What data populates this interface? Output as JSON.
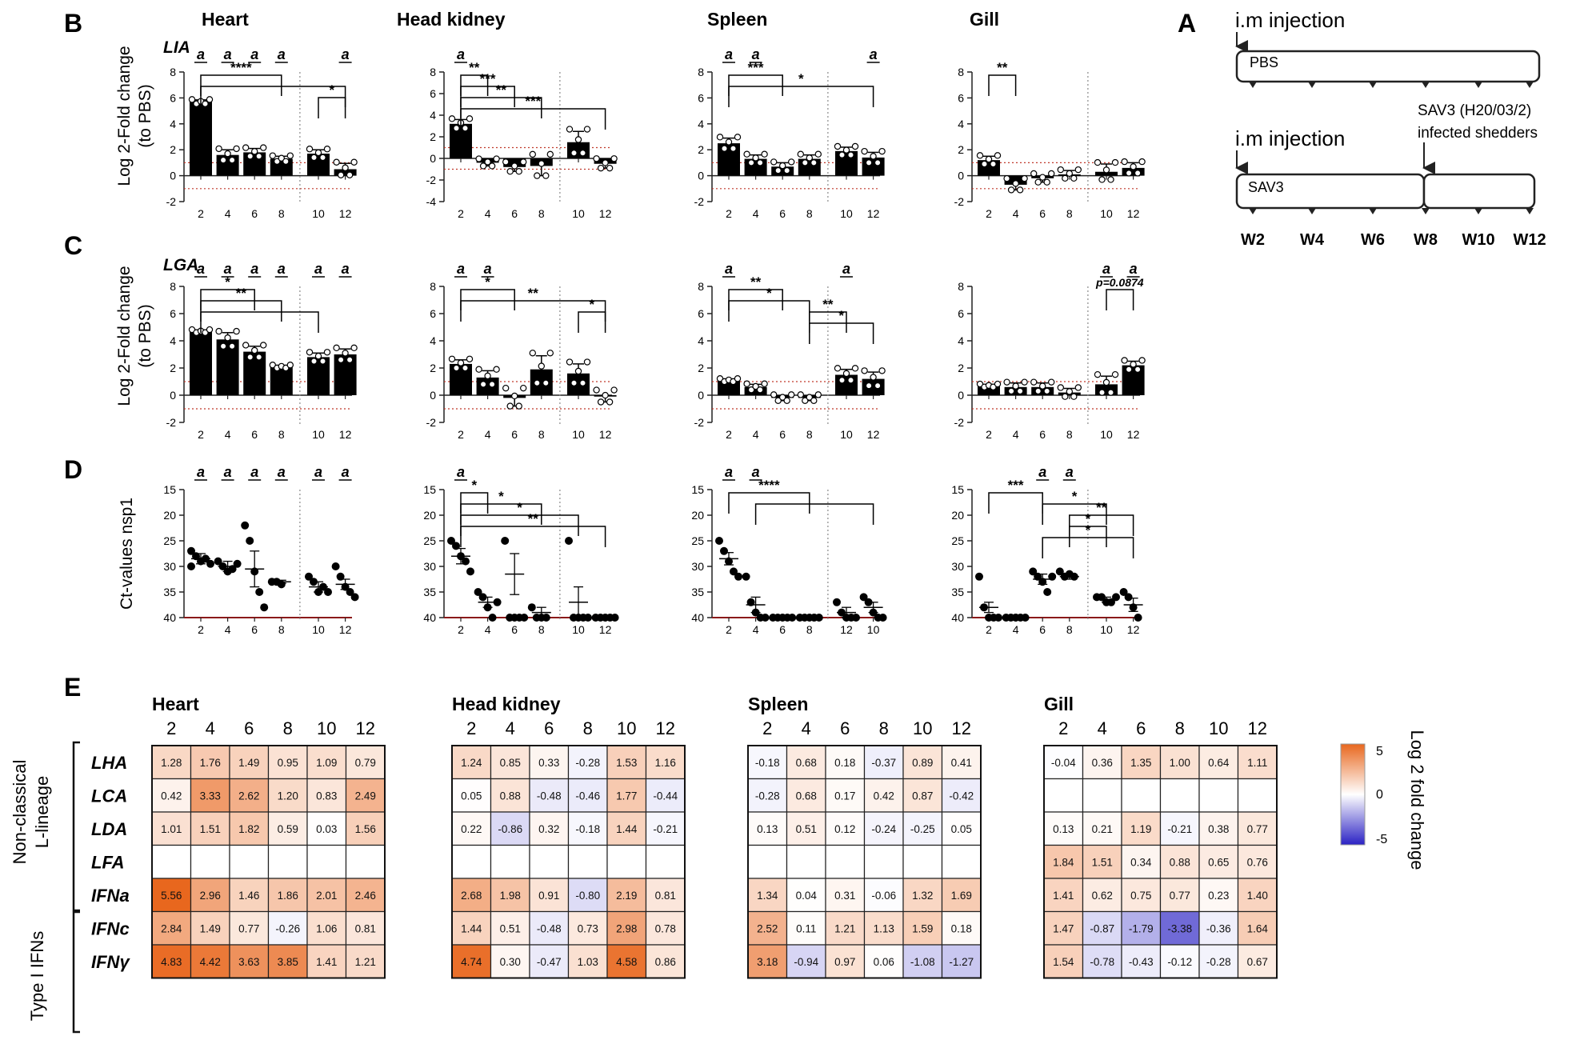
{
  "figure": {
    "panel_letters": {
      "A": "A",
      "B": "B",
      "C": "C",
      "D": "D",
      "E": "E"
    },
    "tissues": [
      "Heart",
      "Head kidney",
      "Spleen",
      "Gill"
    ],
    "gene_labels": {
      "B": "LIA",
      "C": "LGA"
    },
    "ylabel_fold": [
      "Log 2-Fold change",
      "(to PBS)"
    ],
    "ylabel_ct": "Ct-values nsp1",
    "heatmap_group_labels": {
      "noncl": [
        "Non-classical",
        "L-lineage"
      ],
      "typeI": "Type I IFNs"
    },
    "colorbar": {
      "label": "Log 2 fold change",
      "ticks": [
        "5",
        "0",
        "-5"
      ],
      "colors": {
        "high": "#e8671e",
        "mid": "#ffffff",
        "low": "#2b22c4"
      }
    }
  },
  "schematic": {
    "injection_label": "i.m injection",
    "group1_label": "PBS",
    "group2_label": "SAV3",
    "shedders_label": [
      "SAV3 (H20/03/2)",
      "infected shedders"
    ],
    "weeks": [
      "W2",
      "W4",
      "W6",
      "W8",
      "W10",
      "W12"
    ]
  },
  "chart_data": [
    {
      "id": "B-Heart",
      "type": "bar",
      "panel": "B",
      "tissue": "Heart",
      "weeks": [
        "2",
        "4",
        "6",
        "8",
        "10",
        "12"
      ],
      "values": [
        5.7,
        1.6,
        1.8,
        1.3,
        1.7,
        0.5
      ],
      "errors": [
        0.15,
        0.4,
        0.3,
        0.2,
        0.3,
        0.45
      ],
      "ylim": [
        -2,
        8
      ],
      "yticks": [
        "8",
        "6",
        "4",
        "2",
        "0",
        "-2"
      ],
      "annotations": [
        "a",
        "a",
        "a",
        "a",
        "",
        "a"
      ],
      "brackets": [
        {
          "from": "2",
          "to": "8",
          "label": "****"
        },
        {
          "from": "2",
          "to": "12",
          "label": ""
        },
        {
          "from": "10",
          "to": "12",
          "label": "*"
        }
      ]
    },
    {
      "id": "B-HeadKidney",
      "type": "bar",
      "panel": "B",
      "tissue": "Head kidney",
      "weeks": [
        "2",
        "4",
        "6",
        "8",
        "10",
        "12"
      ],
      "values": [
        3.2,
        -0.4,
        -0.8,
        -0.7,
        1.5,
        -0.5
      ],
      "errors": [
        0.4,
        0.3,
        0.4,
        0.9,
        1.0,
        0.4
      ],
      "ylim": [
        -4,
        8
      ],
      "yticks": [
        "8",
        "6",
        "4",
        "2",
        "0",
        "-2",
        "-4"
      ],
      "annotations": [
        "a",
        "",
        "",
        "",
        "",
        ""
      ],
      "brackets": [
        {
          "from": "2",
          "to": "4",
          "label": "**"
        },
        {
          "from": "2",
          "to": "6",
          "label": "***"
        },
        {
          "from": "2",
          "to": "8",
          "label": "**"
        },
        {
          "from": "2",
          "to": "12",
          "label": "***"
        }
      ]
    },
    {
      "id": "B-Spleen",
      "type": "bar",
      "panel": "B",
      "tissue": "Spleen",
      "weeks": [
        "2",
        "4",
        "6",
        "8",
        "10",
        "12"
      ],
      "values": [
        2.5,
        1.3,
        0.7,
        1.3,
        1.9,
        1.4
      ],
      "errors": [
        0.4,
        0.3,
        0.3,
        0.3,
        0.3,
        0.4
      ],
      "ylim": [
        -2,
        8
      ],
      "yticks": [
        "8",
        "6",
        "4",
        "2",
        "0",
        "-2"
      ],
      "annotations": [
        "a",
        "a",
        "",
        "",
        "",
        "a"
      ],
      "brackets": [
        {
          "from": "2",
          "to": "6",
          "label": "***"
        },
        {
          "from": "2",
          "to": "12",
          "label": "*"
        }
      ]
    },
    {
      "id": "B-Gill",
      "type": "bar",
      "panel": "B",
      "tissue": "Gill",
      "weeks": [
        "2",
        "4",
        "6",
        "8",
        "10",
        "12"
      ],
      "values": [
        1.2,
        -0.7,
        -0.2,
        0.1,
        0.3,
        0.6
      ],
      "errors": [
        0.3,
        0.4,
        0.3,
        0.3,
        0.6,
        0.4
      ],
      "ylim": [
        -2,
        8
      ],
      "yticks": [
        "8",
        "6",
        "4",
        "2",
        "0",
        "-2"
      ],
      "annotations": [
        "",
        "",
        "",
        "",
        "",
        ""
      ],
      "brackets": [
        {
          "from": "2",
          "to": "4",
          "label": "**"
        }
      ]
    },
    {
      "id": "C-Heart",
      "type": "bar",
      "panel": "C",
      "tissue": "Heart",
      "weeks": [
        "2",
        "4",
        "6",
        "8",
        "10",
        "12"
      ],
      "values": [
        4.7,
        4.1,
        3.2,
        2.1,
        2.8,
        3.0
      ],
      "errors": [
        0.1,
        0.5,
        0.4,
        0.1,
        0.3,
        0.4
      ],
      "ylim": [
        -2,
        8
      ],
      "yticks": [
        "8",
        "6",
        "4",
        "2",
        "0",
        "-2"
      ],
      "annotations": [
        "a",
        "a",
        "a",
        "a",
        "a",
        "a"
      ],
      "brackets": [
        {
          "from": "2",
          "to": "6",
          "label": "*"
        },
        {
          "from": "2",
          "to": "8",
          "label": "**"
        },
        {
          "from": "2",
          "to": "10",
          "label": ""
        }
      ]
    },
    {
      "id": "C-HeadKidney",
      "type": "bar",
      "panel": "C",
      "tissue": "Head kidney",
      "weeks": [
        "2",
        "4",
        "6",
        "8",
        "10",
        "12"
      ],
      "values": [
        2.3,
        1.3,
        -0.2,
        1.9,
        1.6,
        -0.1
      ],
      "errors": [
        0.3,
        0.5,
        0.6,
        1.0,
        0.7,
        0.4
      ],
      "ylim": [
        -2,
        8
      ],
      "yticks": [
        "8",
        "6",
        "4",
        "2",
        "0",
        "-2"
      ],
      "annotations": [
        "a",
        "a",
        "",
        "",
        "",
        ""
      ],
      "brackets": [
        {
          "from": "2",
          "to": "6",
          "label": "*"
        },
        {
          "from": "2",
          "to": "12",
          "label": "**"
        },
        {
          "from": "10",
          "to": "12",
          "label": "*"
        }
      ]
    },
    {
      "id": "C-Spleen",
      "type": "bar",
      "panel": "C",
      "tissue": "Spleen",
      "weeks": [
        "2",
        "4",
        "6",
        "8",
        "10",
        "12"
      ],
      "values": [
        1.1,
        0.6,
        -0.2,
        -0.2,
        1.5,
        1.2
      ],
      "errors": [
        0.1,
        0.2,
        0.2,
        0.2,
        0.4,
        0.5
      ],
      "ylim": [
        -2,
        8
      ],
      "yticks": [
        "8",
        "6",
        "4",
        "2",
        "0",
        "-2"
      ],
      "annotations": [
        "a",
        "",
        "",
        "",
        "a",
        ""
      ],
      "brackets": [
        {
          "from": "2",
          "to": "6",
          "label": "**"
        },
        {
          "from": "2",
          "to": "8",
          "label": "*"
        },
        {
          "from": "8",
          "to": "10",
          "label": "**"
        },
        {
          "from": "8",
          "to": "12",
          "label": "*"
        }
      ]
    },
    {
      "id": "C-Gill",
      "type": "bar",
      "panel": "C",
      "tissue": "Gill",
      "weeks": [
        "2",
        "4",
        "6",
        "8",
        "10",
        "12"
      ],
      "values": [
        0.7,
        0.6,
        0.6,
        0.2,
        0.8,
        2.2
      ],
      "errors": [
        0.1,
        0.3,
        0.3,
        0.3,
        0.6,
        0.3
      ],
      "ylim": [
        -2,
        8
      ],
      "yticks": [
        "8",
        "6",
        "4",
        "2",
        "0",
        "-2"
      ],
      "annotations": [
        "",
        "",
        "",
        "",
        "a",
        "a"
      ],
      "brackets": [
        {
          "from": "10",
          "to": "12",
          "label": "p=0.0874"
        }
      ]
    },
    {
      "id": "D-Heart",
      "type": "scatter",
      "panel": "D",
      "tissue": "Heart",
      "weeks": [
        "2",
        "4",
        "6",
        "8",
        "10",
        "12"
      ],
      "means": [
        28.5,
        30,
        30.5,
        33,
        34,
        33.5
      ],
      "errors": [
        1,
        1,
        3.5,
        0.3,
        1,
        1
      ],
      "points": [
        [
          27,
          28,
          29,
          28.5,
          29.5,
          30
        ],
        [
          29,
          30,
          31,
          30.5,
          29.5
        ],
        [
          22,
          25,
          31,
          35,
          38
        ],
        [
          33,
          33,
          33.5
        ],
        [
          32,
          33,
          35,
          34,
          35
        ],
        [
          30,
          32,
          34,
          35,
          36
        ]
      ],
      "ylim": [
        15,
        40
      ],
      "yticks": [
        "15",
        "20",
        "25",
        "30",
        "35",
        "40"
      ],
      "annotations": [
        "a",
        "a",
        "a",
        "a",
        "a",
        "a"
      ],
      "brackets": []
    },
    {
      "id": "D-HeadKidney",
      "type": "scatter",
      "panel": "D",
      "tissue": "Head kidney",
      "weeks": [
        "2",
        "4",
        "6",
        "8",
        "10",
        "12"
      ],
      "means": [
        28,
        37,
        31.5,
        39,
        37,
        40
      ],
      "errors": [
        1.5,
        1,
        4,
        1,
        3,
        0
      ],
      "points": [
        [
          25,
          26,
          28,
          29,
          31
        ],
        [
          35,
          36,
          38,
          40,
          37
        ],
        [
          25,
          40,
          40,
          40,
          40
        ],
        [
          38,
          40,
          40,
          40
        ],
        [
          25,
          40,
          40,
          40,
          40
        ],
        [
          40,
          40,
          40,
          40,
          40
        ]
      ],
      "ylim": [
        15,
        40
      ],
      "yticks": [
        "15",
        "20",
        "25",
        "30",
        "35",
        "40"
      ],
      "annotations": [
        "a",
        "",
        "",
        "",
        "",
        ""
      ],
      "brackets": [
        {
          "from": "2",
          "to": "4",
          "label": "*"
        },
        {
          "from": "2",
          "to": "8",
          "label": "*"
        },
        {
          "from": "2",
          "to": "10",
          "label": "*"
        },
        {
          "from": "2",
          "to": "12",
          "label": "**"
        }
      ]
    },
    {
      "id": "D-Spleen",
      "type": "scatter",
      "panel": "D",
      "tissue": "Spleen",
      "weeks": [
        "2",
        "4",
        "6",
        "8",
        "12",
        "10"
      ],
      "means": [
        28.5,
        37.5,
        40,
        40,
        39,
        38
      ],
      "errors": [
        1.2,
        1.5,
        0,
        0,
        1,
        1
      ],
      "points": [
        [
          25,
          27,
          29,
          31,
          32
        ],
        [
          32,
          37,
          39,
          40,
          40
        ],
        [
          40,
          40,
          40,
          40,
          40
        ],
        [
          40,
          40,
          40,
          40,
          40
        ],
        [
          37,
          39,
          40,
          40,
          40
        ],
        [
          36,
          37,
          39,
          40,
          40
        ]
      ],
      "ylim": [
        15,
        40
      ],
      "yticks": [
        "15",
        "20",
        "25",
        "30",
        "35",
        "40"
      ],
      "annotations": [
        "a",
        "a",
        "",
        "",
        "",
        ""
      ],
      "brackets": [
        {
          "from": "2",
          "to": "8",
          "label": "****"
        },
        {
          "from": "4",
          "to": "10",
          "label": ""
        }
      ]
    },
    {
      "id": "D-Gill",
      "type": "scatter",
      "panel": "D",
      "tissue": "Gill",
      "weeks": [
        "2",
        "4",
        "6",
        "8",
        "10",
        "12"
      ],
      "means": [
        38,
        40,
        32.5,
        32,
        36.5,
        37.5
      ],
      "errors": [
        1,
        0,
        1,
        0.5,
        0.5,
        1.3
      ],
      "points": [
        [
          32,
          38,
          40,
          40,
          40
        ],
        [
          40,
          40,
          40,
          40,
          40
        ],
        [
          31,
          32,
          33,
          35,
          32
        ],
        [
          31,
          32,
          31.5,
          32
        ],
        [
          36,
          36,
          37,
          37,
          36
        ],
        [
          35,
          36,
          38,
          40
        ]
      ],
      "ylim": [
        15,
        40
      ],
      "yticks": [
        "15",
        "20",
        "25",
        "30",
        "35",
        "40"
      ],
      "annotations": [
        "",
        "",
        "a",
        "a",
        "",
        ""
      ],
      "brackets": [
        {
          "from": "2",
          "to": "6",
          "label": "***"
        },
        {
          "from": "6",
          "to": "10",
          "label": "*"
        },
        {
          "from": "8",
          "to": "12",
          "label": "**"
        },
        {
          "from": "8",
          "to": "10",
          "label": "*"
        },
        {
          "from": "6",
          "to": "12",
          "label": "*"
        }
      ]
    },
    {
      "id": "E-Heart",
      "type": "heatmap",
      "panel": "E",
      "tissue": "Heart",
      "columns": [
        "2",
        "4",
        "6",
        "8",
        "10",
        "12"
      ],
      "rows": [
        "LHA",
        "LCA",
        "LDA",
        "LFA",
        "IFNa",
        "IFNc",
        "IFNγ"
      ],
      "values": [
        [
          "1.28",
          "1.76",
          "1.49",
          "0.95",
          "1.09",
          "0.79"
        ],
        [
          "0.42",
          "3.33",
          "2.62",
          "1.20",
          "0.83",
          "2.49"
        ],
        [
          "1.01",
          "1.51",
          "1.82",
          "0.59",
          "0.03",
          "1.56"
        ],
        [
          "",
          "",
          "",
          "",
          "",
          ""
        ],
        [
          "5.56",
          "2.96",
          "1.46",
          "1.86",
          "2.01",
          "2.46"
        ],
        [
          "2.84",
          "1.49",
          "0.77",
          "-0.26",
          "1.06",
          "0.81"
        ],
        [
          "4.83",
          "4.42",
          "3.63",
          "3.85",
          "1.41",
          "1.21"
        ]
      ]
    },
    {
      "id": "E-HeadKidney",
      "type": "heatmap",
      "panel": "E",
      "tissue": "Head kidney",
      "columns": [
        "2",
        "4",
        "6",
        "8",
        "10",
        "12"
      ],
      "rows": [
        "LHA",
        "LCA",
        "LDA",
        "LFA",
        "IFNa",
        "IFNc",
        "IFNγ"
      ],
      "values": [
        [
          "1.24",
          "0.85",
          "0.33",
          "-0.28",
          "1.53",
          "1.16"
        ],
        [
          "0.05",
          "0.88",
          "-0.48",
          "-0.46",
          "1.77",
          "-0.44"
        ],
        [
          "0.22",
          "-0.86",
          "0.32",
          "-0.18",
          "1.44",
          "-0.21"
        ],
        [
          "",
          "",
          "",
          "",
          "",
          ""
        ],
        [
          "2.68",
          "1.98",
          "0.91",
          "-0.80",
          "2.19",
          "0.81"
        ],
        [
          "1.44",
          "0.51",
          "-0.48",
          "0.73",
          "2.98",
          "0.78"
        ],
        [
          "4.74",
          "0.30",
          "-0.47",
          "1.03",
          "4.58",
          "0.86"
        ]
      ]
    },
    {
      "id": "E-Spleen",
      "type": "heatmap",
      "panel": "E",
      "tissue": "Spleen",
      "columns": [
        "2",
        "4",
        "6",
        "8",
        "10",
        "12"
      ],
      "rows": [
        "LHA",
        "LCA",
        "LDA",
        "LFA",
        "IFNa",
        "IFNc",
        "IFNγ"
      ],
      "values": [
        [
          "-0.18",
          "0.68",
          "0.18",
          "-0.37",
          "0.89",
          "0.41"
        ],
        [
          "-0.28",
          "0.68",
          "0.17",
          "0.42",
          "0.87",
          "-0.42"
        ],
        [
          "0.13",
          "0.51",
          "0.12",
          "-0.24",
          "-0.25",
          "0.05"
        ],
        [
          "",
          "",
          "",
          "",
          "",
          ""
        ],
        [
          "1.34",
          "0.04",
          "0.31",
          "-0.06",
          "1.32",
          "1.69"
        ],
        [
          "2.52",
          "0.11",
          "1.21",
          "1.13",
          "1.59",
          "0.18"
        ],
        [
          "3.18",
          "-0.94",
          "0.97",
          "0.06",
          "-1.08",
          "-1.27"
        ]
      ]
    },
    {
      "id": "E-Gill",
      "type": "heatmap",
      "panel": "E",
      "tissue": "Gill",
      "columns": [
        "2",
        "4",
        "6",
        "8",
        "10",
        "12"
      ],
      "rows": [
        "LHA",
        "LCA",
        "LDA",
        "LFA",
        "IFNa",
        "IFNc",
        "IFNγ"
      ],
      "values": [
        [
          "-0.04",
          "0.36",
          "1.35",
          "1.00",
          "0.64",
          "1.11"
        ],
        [
          "",
          "",
          "",
          "",
          "",
          ""
        ],
        [
          "0.13",
          "0.21",
          "1.19",
          "-0.21",
          "0.38",
          "0.77"
        ],
        [
          "1.84",
          "1.51",
          "0.34",
          "0.88",
          "0.65",
          "0.76"
        ],
        [
          "1.41",
          "0.62",
          "0.75",
          "0.77",
          "0.23",
          "1.40"
        ],
        [
          "1.47",
          "-0.87",
          "-1.79",
          "-3.38",
          "-0.36",
          "1.64"
        ],
        [
          "1.54",
          "-0.78",
          "-0.43",
          "-0.12",
          "-0.28",
          "0.67"
        ]
      ]
    }
  ]
}
